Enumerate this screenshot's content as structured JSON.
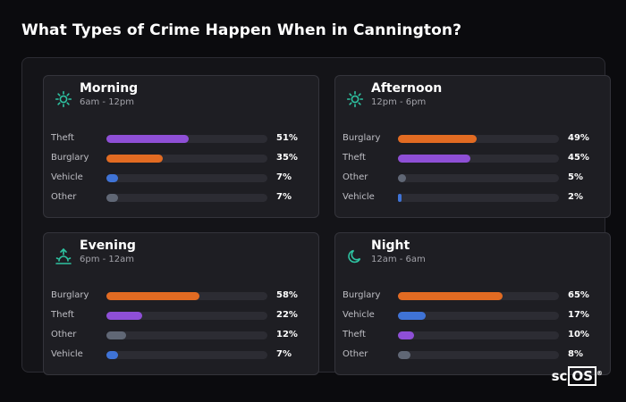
{
  "title": "What Types of Crime Happen When in Cannington?",
  "colors": {
    "Theft": "#8e4fd6",
    "Burglary": "#e26b22",
    "Vehicle": "#3f73d6",
    "Other": "#606775",
    "icon": "#2ec4a2"
  },
  "cards": [
    {
      "name": "Morning",
      "hours": "6am - 12pm",
      "icon": "sun-icon",
      "rows": [
        {
          "label": "Theft",
          "value": 51,
          "pct": "51%"
        },
        {
          "label": "Burglary",
          "value": 35,
          "pct": "35%"
        },
        {
          "label": "Vehicle",
          "value": 7,
          "pct": "7%"
        },
        {
          "label": "Other",
          "value": 7,
          "pct": "7%"
        }
      ]
    },
    {
      "name": "Afternoon",
      "hours": "12pm - 6pm",
      "icon": "sun-icon",
      "rows": [
        {
          "label": "Burglary",
          "value": 49,
          "pct": "49%"
        },
        {
          "label": "Theft",
          "value": 45,
          "pct": "45%"
        },
        {
          "label": "Other",
          "value": 5,
          "pct": "5%"
        },
        {
          "label": "Vehicle",
          "value": 2,
          "pct": "2%"
        }
      ]
    },
    {
      "name": "Evening",
      "hours": "6pm - 12am",
      "icon": "sunset-icon",
      "rows": [
        {
          "label": "Burglary",
          "value": 58,
          "pct": "58%"
        },
        {
          "label": "Theft",
          "value": 22,
          "pct": "22%"
        },
        {
          "label": "Other",
          "value": 12,
          "pct": "12%"
        },
        {
          "label": "Vehicle",
          "value": 7,
          "pct": "7%"
        }
      ]
    },
    {
      "name": "Night",
      "hours": "12am - 6am",
      "icon": "moon-icon",
      "rows": [
        {
          "label": "Burglary",
          "value": 65,
          "pct": "65%"
        },
        {
          "label": "Vehicle",
          "value": 17,
          "pct": "17%"
        },
        {
          "label": "Theft",
          "value": 10,
          "pct": "10%"
        },
        {
          "label": "Other",
          "value": 8,
          "pct": "8%"
        }
      ]
    }
  ],
  "logo": {
    "prefix": "sc",
    "boxed": "OS",
    "mark": "®"
  }
}
